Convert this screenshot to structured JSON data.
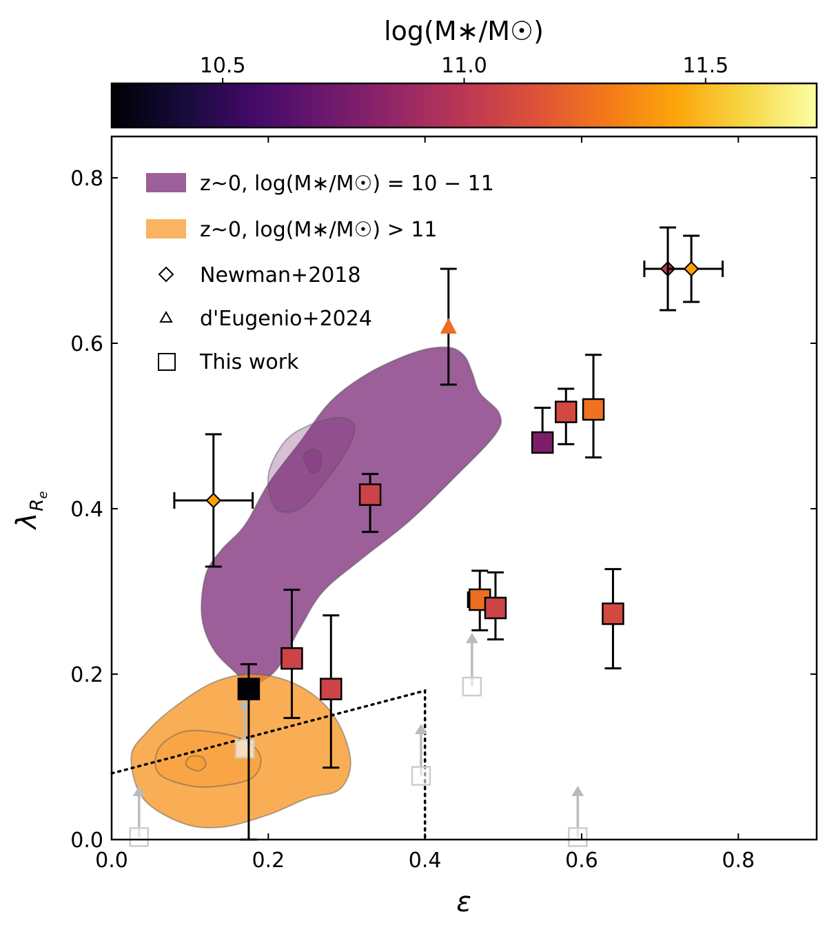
{
  "chart_data": {
    "type": "scatter",
    "xlabel": "ε",
    "ylabel": "λRe",
    "xlim": [
      0.0,
      0.9
    ],
    "ylim": [
      0.0,
      0.85
    ],
    "xticks": [
      0.0,
      0.2,
      0.4,
      0.6,
      0.8
    ],
    "xtick_labels": [
      "0.0",
      "0.2",
      "0.4",
      "0.6",
      "0.8"
    ],
    "yticks": [
      0.0,
      0.2,
      0.4,
      0.6,
      0.8
    ],
    "ytick_labels": [
      "0.0",
      "0.2",
      "0.4",
      "0.6",
      "0.8"
    ],
    "colorbar": {
      "label": "log(M∗/M☉)",
      "range": [
        10.27,
        11.73
      ],
      "ticks": [
        10.5,
        11.0,
        11.5
      ],
      "tick_labels": [
        "10.5",
        "11.0",
        "11.5"
      ],
      "colormap": "inferno"
    },
    "legend": {
      "placement": "top-left",
      "entries": [
        {
          "marker": "patch",
          "color": "#7b2a77",
          "label": "z~0, log(M∗/M☉) = 10 − 11"
        },
        {
          "marker": "patch",
          "color": "#f7931e",
          "label": "z~0, log(M∗/M☉) > 11"
        },
        {
          "marker": "diamond",
          "label": "Newman+2018"
        },
        {
          "marker": "triangle",
          "label": "d'Eugenio+2024"
        },
        {
          "marker": "square",
          "label": "This work"
        }
      ]
    },
    "contours": [
      {
        "name": "z~0 log M 10-11",
        "color": "#7b2a77",
        "levels": [
          [
            [
              0.16,
              0.2
            ],
            [
              0.13,
              0.23
            ],
            [
              0.115,
              0.27
            ],
            [
              0.12,
              0.32
            ],
            [
              0.14,
              0.35
            ],
            [
              0.17,
              0.38
            ],
            [
              0.2,
              0.43
            ],
            [
              0.24,
              0.48
            ],
            [
              0.28,
              0.53
            ],
            [
              0.33,
              0.565
            ],
            [
              0.39,
              0.59
            ],
            [
              0.43,
              0.595
            ],
            [
              0.45,
              0.585
            ],
            [
              0.46,
              0.565
            ],
            [
              0.47,
              0.54
            ],
            [
              0.495,
              0.515
            ],
            [
              0.49,
              0.49
            ],
            [
              0.44,
              0.44
            ],
            [
              0.38,
              0.385
            ],
            [
              0.32,
              0.34
            ],
            [
              0.27,
              0.3
            ],
            [
              0.24,
              0.255
            ],
            [
              0.21,
              0.205
            ],
            [
              0.175,
              0.185
            ]
          ],
          [
            [
              0.21,
              0.4
            ],
            [
              0.2,
              0.44
            ],
            [
              0.22,
              0.48
            ],
            [
              0.25,
              0.5
            ],
            [
              0.29,
              0.51
            ],
            [
              0.31,
              0.5
            ],
            [
              0.3,
              0.47
            ],
            [
              0.27,
              0.43
            ],
            [
              0.24,
              0.4
            ]
          ],
          [
            [
              0.25,
              0.45
            ],
            [
              0.245,
              0.465
            ],
            [
              0.258,
              0.472
            ],
            [
              0.267,
              0.465
            ],
            [
              0.266,
              0.448
            ],
            [
              0.256,
              0.443
            ]
          ]
        ]
      },
      {
        "name": "z~0 log M >11",
        "color": "#f7931e",
        "levels": [
          [
            [
              0.04,
              0.05
            ],
            [
              0.025,
              0.1
            ],
            [
              0.045,
              0.13
            ],
            [
              0.08,
              0.16
            ],
            [
              0.13,
              0.19
            ],
            [
              0.18,
              0.2
            ],
            [
              0.23,
              0.19
            ],
            [
              0.27,
              0.165
            ],
            [
              0.295,
              0.13
            ],
            [
              0.305,
              0.09
            ],
            [
              0.29,
              0.06
            ],
            [
              0.25,
              0.05
            ],
            [
              0.2,
              0.03
            ],
            [
              0.14,
              0.015
            ],
            [
              0.09,
              0.02
            ]
          ],
          [
            [
              0.06,
              0.08
            ],
            [
              0.06,
              0.11
            ],
            [
              0.09,
              0.13
            ],
            [
              0.13,
              0.13
            ],
            [
              0.17,
              0.12
            ],
            [
              0.19,
              0.1
            ],
            [
              0.18,
              0.075
            ],
            [
              0.14,
              0.065
            ],
            [
              0.1,
              0.065
            ]
          ],
          [
            [
              0.095,
              0.09
            ],
            [
              0.1,
              0.1
            ],
            [
              0.115,
              0.1
            ],
            [
              0.12,
              0.09
            ],
            [
              0.11,
              0.083
            ]
          ]
        ]
      }
    ],
    "this_work": [
      {
        "eps": 0.175,
        "lam": 0.182,
        "logm": 10.28,
        "lam_lo": 0.0,
        "lam_hi": 0.212
      },
      {
        "eps": 0.23,
        "lam": 0.219,
        "logm": 11.07,
        "lam_lo": 0.147,
        "lam_hi": 0.302
      },
      {
        "eps": 0.28,
        "lam": 0.182,
        "logm": 11.07,
        "lam_lo": 0.087,
        "lam_hi": 0.271
      },
      {
        "eps": 0.33,
        "lam": 0.417,
        "logm": 11.07,
        "lam_lo": 0.372,
        "lam_hi": 0.442
      },
      {
        "eps": 0.47,
        "lam": 0.29,
        "logm": 11.25,
        "lam_lo": 0.253,
        "lam_hi": 0.325,
        "eps_lo": 0.455,
        "eps_hi": 0.48
      },
      {
        "eps": 0.49,
        "lam": 0.28,
        "logm": 11.07,
        "lam_lo": 0.242,
        "lam_hi": 0.323
      },
      {
        "eps": 0.55,
        "lam": 0.48,
        "logm": 10.78,
        "lam_lo": 0.48,
        "lam_hi": 0.522
      },
      {
        "eps": 0.58,
        "lam": 0.517,
        "logm": 11.1,
        "lam_lo": 0.478,
        "lam_hi": 0.545
      },
      {
        "eps": 0.615,
        "lam": 0.52,
        "logm": 11.27,
        "lam_lo": 0.462,
        "lam_hi": 0.586
      },
      {
        "eps": 0.64,
        "lam": 0.273,
        "logm": 11.1,
        "lam_lo": 0.207,
        "lam_hi": 0.327
      }
    ],
    "this_work_lower_limits": [
      {
        "eps": 0.035,
        "lam": 0.003,
        "arrow_to": 0.065
      },
      {
        "eps": 0.17,
        "lam": 0.11,
        "arrow_to": 0.17
      },
      {
        "eps": 0.395,
        "lam": 0.077,
        "arrow_to": 0.14
      },
      {
        "eps": 0.46,
        "lam": 0.185,
        "arrow_to": 0.25
      },
      {
        "eps": 0.595,
        "lam": 0.003,
        "arrow_to": 0.065
      }
    ],
    "newman2018": [
      {
        "eps": 0.13,
        "lam": 0.41,
        "logm": 11.42,
        "eps_lo": 0.08,
        "eps_hi": 0.18,
        "lam_lo": 0.33,
        "lam_hi": 0.49
      },
      {
        "eps": 0.71,
        "lam": 0.69,
        "logm": 11.0,
        "eps_lo": 0.68,
        "eps_hi": 0.74,
        "lam_lo": 0.64,
        "lam_hi": 0.74
      },
      {
        "eps": 0.74,
        "lam": 0.69,
        "logm": 11.42,
        "eps_lo": 0.71,
        "eps_hi": 0.78,
        "lam_lo": 0.65,
        "lam_hi": 0.73
      }
    ],
    "deugenio2024": [
      {
        "eps": 0.43,
        "lam": 0.62,
        "logm": 11.25,
        "lam_lo": 0.55,
        "lam_hi": 0.69
      }
    ],
    "fast_slow_boundary": [
      [
        0.0,
        0.08
      ],
      [
        0.4,
        0.18
      ],
      [
        0.4,
        0.0
      ]
    ]
  }
}
